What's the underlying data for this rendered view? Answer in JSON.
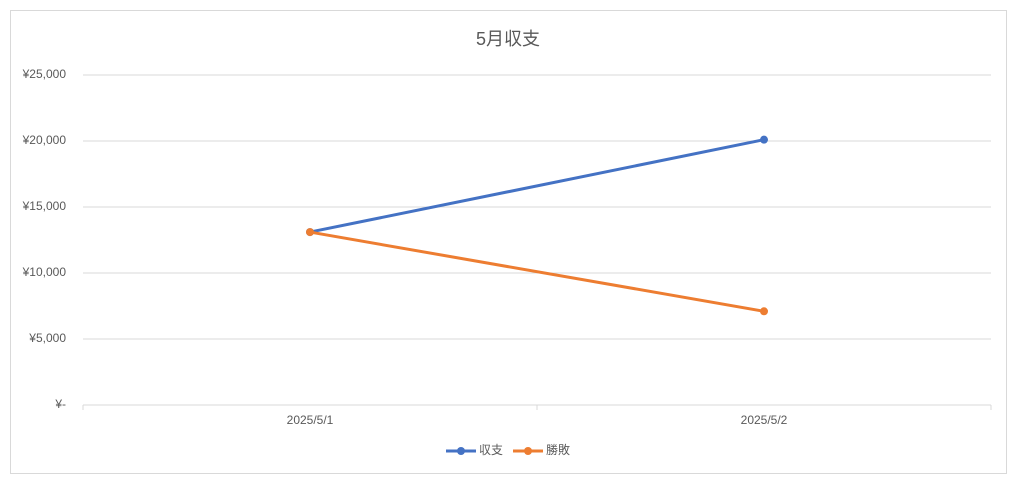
{
  "chart_data": {
    "type": "line",
    "title": "5月収支",
    "categories": [
      "2025/5/1",
      "2025/5/2"
    ],
    "series": [
      {
        "name": "収支",
        "color": "#4472c4",
        "values": [
          13100,
          20100
        ]
      },
      {
        "name": "勝敗",
        "color": "#ed7d31",
        "values": [
          13100,
          7100
        ]
      }
    ],
    "ylim": [
      0,
      25000
    ],
    "yticks": [
      {
        "value": 0,
        "label": "¥-"
      },
      {
        "value": 5000,
        "label": "¥5,000"
      },
      {
        "value": 10000,
        "label": "¥10,000"
      },
      {
        "value": 15000,
        "label": "¥15,000"
      },
      {
        "value": 20000,
        "label": "¥20,000"
      },
      {
        "value": 25000,
        "label": "¥25,000"
      }
    ],
    "grid": true,
    "legend": "bottom"
  }
}
